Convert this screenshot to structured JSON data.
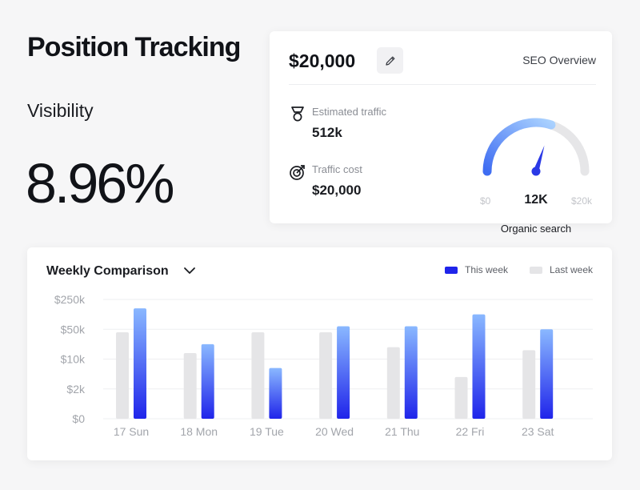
{
  "page": {
    "title": "Position Tracking",
    "visibility_label": "Visibility",
    "visibility_value": "8.96%"
  },
  "seo": {
    "price": "$20,000",
    "overview_link": "SEO Overview",
    "metrics": [
      {
        "icon": "medal-icon",
        "label": "Estimated traffic",
        "value": "512k"
      },
      {
        "icon": "target-icon",
        "label": "Traffic cost",
        "value": "$20,000"
      }
    ],
    "gauge": {
      "min_label": "$0",
      "max_label": "$20k",
      "value_label": "12K",
      "caption": "Organic search",
      "fraction": 0.6
    }
  },
  "weekly": {
    "title": "Weekly Comparison",
    "legend": {
      "this_week": "This week",
      "last_week": "Last week"
    },
    "colors": {
      "this_week_top": "#8ab8ff",
      "this_week_bottom": "#1f24ea",
      "last_week": "#e5e5e7",
      "grid": "#eeeff1"
    }
  },
  "chart_data": {
    "type": "bar",
    "title": "Weekly Comparison",
    "categories": [
      "17 Sun",
      "18 Mon",
      "19 Tue",
      "20 Wed",
      "21 Thu",
      "22 Fri",
      "23 Sat"
    ],
    "y_ticks": [
      "$250k",
      "$50k",
      "$10k",
      "$2k",
      "$0"
    ],
    "ylim": [
      0,
      4
    ],
    "y_scale_note": "tick positions 0..4 correspond to $0,$2k,$10k,$50k,$250k",
    "series": [
      {
        "name": "Last week",
        "values": [
          2.9,
          2.2,
          2.9,
          2.9,
          2.4,
          1.4,
          2.3
        ]
      },
      {
        "name": "This week",
        "values": [
          3.7,
          2.5,
          1.7,
          3.1,
          3.1,
          3.5,
          3.0
        ]
      }
    ],
    "legend_position": "top-right"
  }
}
